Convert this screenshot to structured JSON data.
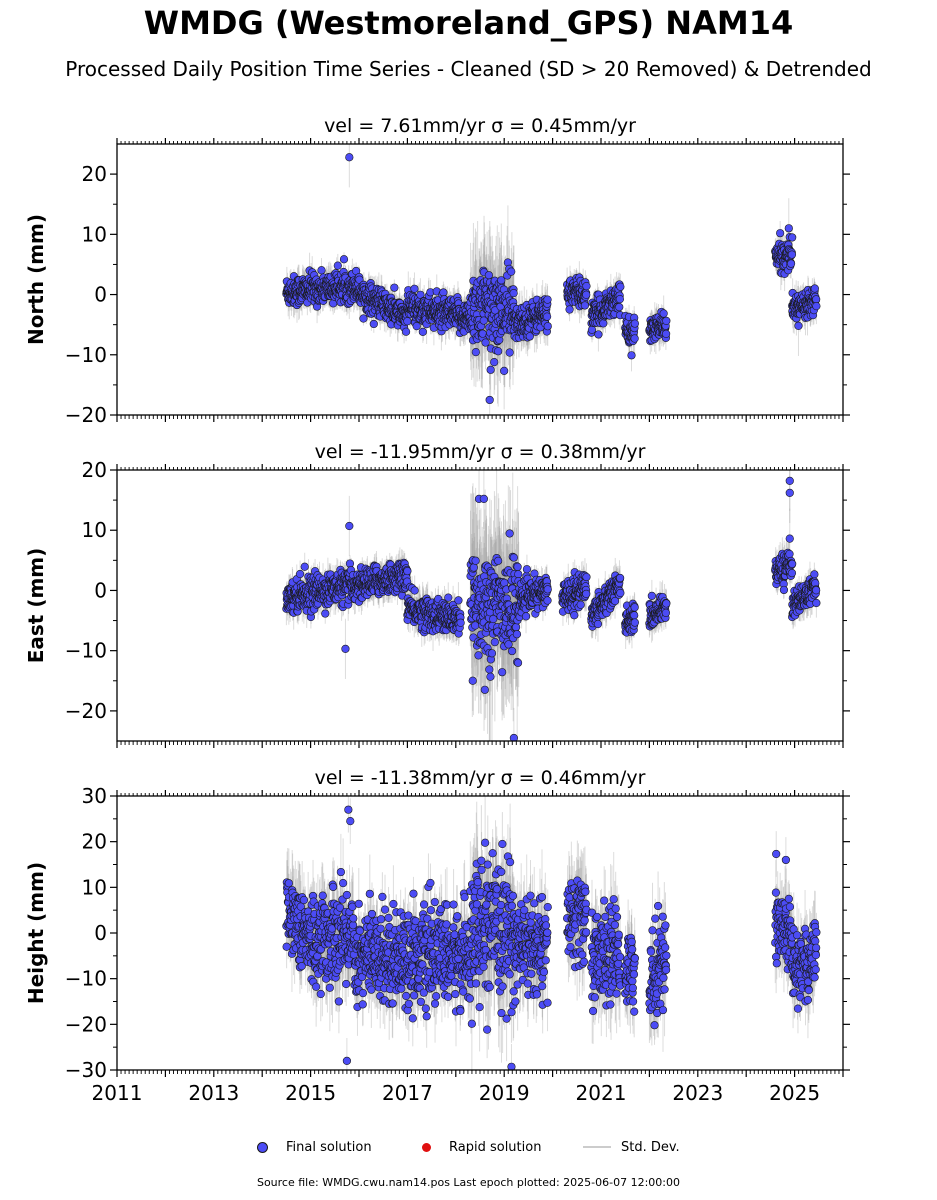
{
  "title": "WMDG (Westmoreland_GPS) NAM14",
  "subtitle": "Processed Daily Position Time Series - Cleaned (SD > 20 Removed) & Detrended",
  "colors": {
    "final": "#4c4cf5",
    "final_edge": "#1a1a1a",
    "rapid": "#e01010",
    "stddev": "#9a9a9a"
  },
  "legend": {
    "final": "Final solution",
    "rapid": "Rapid solution",
    "stddev": "Std. Dev."
  },
  "footer": "Source file: WMDG.cwu.nam14.pos  Last epoch plotted: 2025-06-07 12:00:00",
  "chart_data": [
    {
      "type": "scatter",
      "title": "vel = 7.61mm/yr   σ = 0.45mm/yr",
      "ylabel": "North (mm)",
      "xlim": [
        2011,
        2026
      ],
      "ylim": [
        -20,
        25
      ],
      "yticks": [
        "−20",
        "−10",
        "0",
        "10",
        "20"
      ],
      "ytick_values": [
        -20,
        -10,
        0,
        10,
        20
      ],
      "segments": [
        {
          "x": [
            2014.5,
            2016.0
          ],
          "y": [
            0.5,
            1.5
          ],
          "spread": 1.2,
          "err": 2.0
        },
        {
          "x": [
            2016.0,
            2017.0
          ],
          "y": [
            0.5,
            -4.0
          ],
          "spread": 1.2,
          "err": 2.0
        },
        {
          "x": [
            2017.0,
            2018.3
          ],
          "y": [
            -2.0,
            -4.0
          ],
          "spread": 1.3,
          "err": 2.2
        },
        {
          "x": [
            2018.3,
            2019.2
          ],
          "y": [
            -2.0,
            -3.0
          ],
          "spread": 3.5,
          "err": 7.0
        },
        {
          "x": [
            2019.2,
            2019.9
          ],
          "y": [
            -5.0,
            -3.0
          ],
          "spread": 1.3,
          "err": 2.5
        },
        {
          "x": [
            2020.3,
            2020.7
          ],
          "y": [
            0.5,
            0.0
          ],
          "spread": 1.2,
          "err": 2.0
        },
        {
          "x": [
            2020.8,
            2021.4
          ],
          "y": [
            -4.0,
            0.0
          ],
          "spread": 1.2,
          "err": 2.0
        },
        {
          "x": [
            2021.5,
            2021.7
          ],
          "y": [
            -6.0,
            -6.5
          ],
          "spread": 1.0,
          "err": 2.0
        },
        {
          "x": [
            2022.0,
            2022.35
          ],
          "y": [
            -6.0,
            -5.0
          ],
          "spread": 1.0,
          "err": 2.0
        },
        {
          "x": [
            2024.6,
            2024.95
          ],
          "y": [
            6.0,
            7.0
          ],
          "spread": 1.2,
          "err": 2.0
        },
        {
          "x": [
            2024.95,
            2025.45
          ],
          "y": [
            -2.5,
            -0.5
          ],
          "spread": 1.0,
          "err": 2.0
        }
      ],
      "outliers": [
        {
          "x": 2015.8,
          "y": 22.8
        },
        {
          "x": 2018.7,
          "y": -17.5
        },
        {
          "x": 2018.72,
          "y": -12.5
        },
        {
          "x": 2024.88,
          "y": 11.0
        },
        {
          "x": 2025.08,
          "y": -5.2
        }
      ]
    },
    {
      "type": "scatter",
      "title": "vel = -11.95mm/yr   σ = 0.38mm/yr",
      "ylabel": "East (mm)",
      "xlim": [
        2011,
        2026
      ],
      "ylim": [
        -25,
        20
      ],
      "yticks": [
        "−20",
        "−10",
        "0",
        "10",
        "20"
      ],
      "ytick_values": [
        -20,
        -10,
        0,
        10,
        20
      ],
      "segments": [
        {
          "x": [
            2014.5,
            2016.0
          ],
          "y": [
            -1.0,
            1.0
          ],
          "spread": 1.3,
          "err": 2.0
        },
        {
          "x": [
            2016.0,
            2017.0
          ],
          "y": [
            1.0,
            2.5
          ],
          "spread": 1.2,
          "err": 2.0
        },
        {
          "x": [
            2017.0,
            2018.1
          ],
          "y": [
            -3.0,
            -5.0
          ],
          "spread": 1.3,
          "err": 2.2
        },
        {
          "x": [
            2018.3,
            2019.3
          ],
          "y": [
            -2.0,
            -3.0
          ],
          "spread": 4.5,
          "err": 10.0
        },
        {
          "x": [
            2019.3,
            2019.9
          ],
          "y": [
            -1.5,
            0.0
          ],
          "spread": 1.2,
          "err": 2.0
        },
        {
          "x": [
            2020.2,
            2020.7
          ],
          "y": [
            -1.0,
            0.5
          ],
          "spread": 1.3,
          "err": 2.0
        },
        {
          "x": [
            2020.8,
            2021.4
          ],
          "y": [
            -4.0,
            1.0
          ],
          "spread": 1.2,
          "err": 2.0
        },
        {
          "x": [
            2021.5,
            2021.7
          ],
          "y": [
            -5.0,
            -4.5
          ],
          "spread": 1.0,
          "err": 2.0
        },
        {
          "x": [
            2022.0,
            2022.35
          ],
          "y": [
            -4.5,
            -2.5
          ],
          "spread": 1.0,
          "err": 2.0
        },
        {
          "x": [
            2024.6,
            2024.95
          ],
          "y": [
            3.0,
            4.5
          ],
          "spread": 1.2,
          "err": 2.0
        },
        {
          "x": [
            2024.95,
            2025.45
          ],
          "y": [
            -2.5,
            0.5
          ],
          "spread": 1.0,
          "err": 2.0
        }
      ],
      "outliers": [
        {
          "x": 2015.8,
          "y": 10.7
        },
        {
          "x": 2015.72,
          "y": -9.7
        },
        {
          "x": 2018.48,
          "y": 15.2
        },
        {
          "x": 2018.58,
          "y": 15.2
        },
        {
          "x": 2018.35,
          "y": -15.0
        },
        {
          "x": 2018.6,
          "y": -16.5
        },
        {
          "x": 2019.2,
          "y": -24.5
        },
        {
          "x": 2024.9,
          "y": 18.2
        },
        {
          "x": 2024.9,
          "y": 16.2
        },
        {
          "x": 2024.9,
          "y": 8.6
        }
      ]
    },
    {
      "type": "scatter",
      "title": "vel = -11.38mm/yr   σ = 0.46mm/yr",
      "ylabel": "Height (mm)",
      "xlim": [
        2011,
        2026
      ],
      "ylim": [
        -30,
        30
      ],
      "yticks": [
        "−30",
        "−20",
        "−10",
        "0",
        "10",
        "20",
        "30"
      ],
      "ytick_values": [
        -30,
        -20,
        -10,
        0,
        10,
        20,
        30
      ],
      "xticks": [
        "2011",
        "2013",
        "2015",
        "2017",
        "2019",
        "2021",
        "2023",
        "2025"
      ],
      "xtick_values": [
        2011,
        2013,
        2015,
        2017,
        2019,
        2021,
        2023,
        2025
      ],
      "segments": [
        {
          "x": [
            2014.5,
            2015.0
          ],
          "y": [
            6.0,
            -2.0
          ],
          "spread": 4.0,
          "err": 6.0
        },
        {
          "x": [
            2015.0,
            2015.9
          ],
          "y": [
            -2.0,
            0.0
          ],
          "spread": 5.0,
          "err": 7.0
        },
        {
          "x": [
            2015.9,
            2018.3
          ],
          "y": [
            -5.0,
            -5.0
          ],
          "spread": 5.0,
          "err": 6.0
        },
        {
          "x": [
            2018.3,
            2019.2
          ],
          "y": [
            0.0,
            0.0
          ],
          "spread": 7.0,
          "err": 10.0
        },
        {
          "x": [
            2019.2,
            2019.9
          ],
          "y": [
            -2.0,
            -4.0
          ],
          "spread": 5.0,
          "err": 7.0
        },
        {
          "x": [
            2020.3,
            2020.7
          ],
          "y": [
            3.0,
            3.0
          ],
          "spread": 5.0,
          "err": 7.0
        },
        {
          "x": [
            2020.8,
            2021.4
          ],
          "y": [
            -5.0,
            -5.0
          ],
          "spread": 5.0,
          "err": 7.0
        },
        {
          "x": [
            2021.5,
            2021.7
          ],
          "y": [
            -8.0,
            -8.0
          ],
          "spread": 4.0,
          "err": 6.0
        },
        {
          "x": [
            2022.0,
            2022.35
          ],
          "y": [
            -10.0,
            -5.0
          ],
          "spread": 5.0,
          "err": 7.0
        },
        {
          "x": [
            2024.6,
            2024.95
          ],
          "y": [
            2.0,
            0.0
          ],
          "spread": 4.0,
          "err": 6.0
        },
        {
          "x": [
            2024.95,
            2025.45
          ],
          "y": [
            -8.0,
            -5.0
          ],
          "spread": 4.0,
          "err": 6.0
        }
      ],
      "outliers": [
        {
          "x": 2015.78,
          "y": 27.0
        },
        {
          "x": 2015.82,
          "y": 24.5
        },
        {
          "x": 2015.75,
          "y": -28.0
        },
        {
          "x": 2019.15,
          "y": -29.3
        },
        {
          "x": 2024.62,
          "y": 17.3
        },
        {
          "x": 2024.82,
          "y": 16.0
        }
      ]
    }
  ]
}
